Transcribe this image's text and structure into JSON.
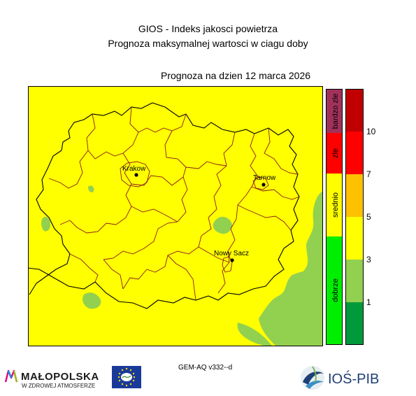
{
  "header": {
    "title": "GIOS - Indeks jakosci powietrza",
    "subtitle": "Prognoza maksymalnej wartosci w ciagu doby",
    "forecast_date": "Prognoza na dzien  12 marca 2026"
  },
  "map": {
    "cities": [
      {
        "name": "Krakow"
      },
      {
        "name": "Tarnow"
      },
      {
        "name": "Nowy Sacz"
      }
    ]
  },
  "legend_categories": [
    {
      "label": "bardzo zle",
      "color": "#a0325a"
    },
    {
      "label": "zle",
      "color": "#ff0000"
    },
    {
      "label": "srednio",
      "color": "#ffff00"
    },
    {
      "label": "dobrze",
      "color": "#00ee00"
    }
  ],
  "legend_scale": {
    "colors": [
      "#009a3a",
      "#92d050",
      "#ffff00",
      "#ffc000",
      "#ff0000",
      "#c00000"
    ],
    "tick_labels": [
      "1",
      "3",
      "5",
      "7",
      "10"
    ]
  },
  "footer": {
    "model": "GEM-AQ v332--d",
    "logo_left": "MAŁOPOLSKA",
    "logo_left_sub": "W ZDROWEJ ATMOSFERZE",
    "logo_right": "IOŚ-PIB"
  }
}
